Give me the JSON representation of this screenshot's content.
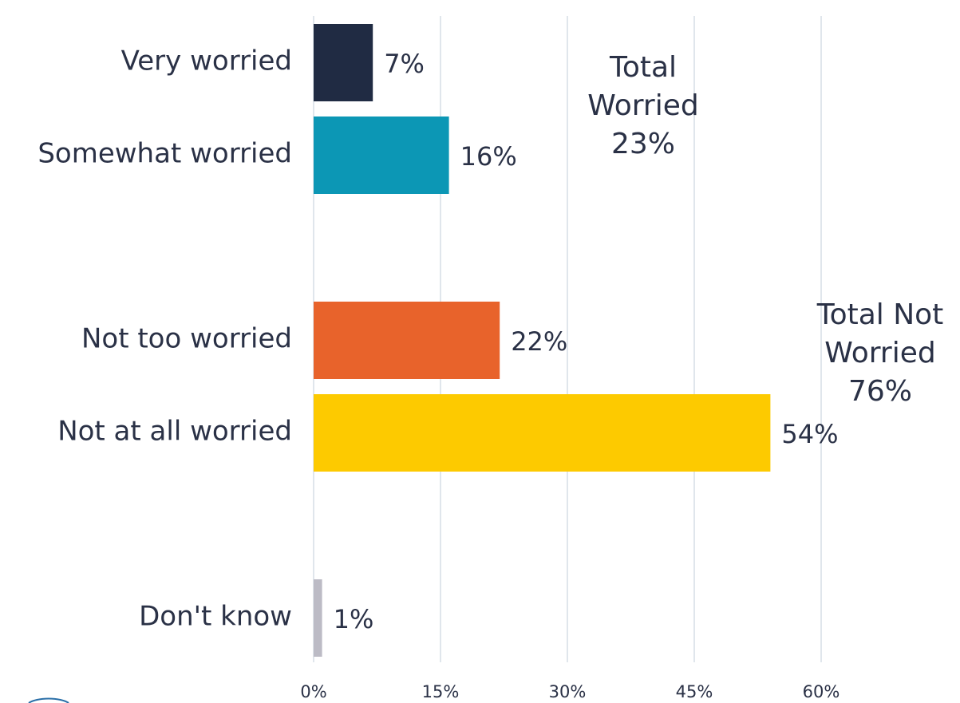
{
  "chart_data": {
    "type": "bar",
    "orientation": "horizontal",
    "categories": [
      "Very worried",
      "Somewhat worried",
      null,
      "Not too worried",
      "Not at all worried",
      null,
      "Don't know"
    ],
    "values": [
      7,
      16,
      null,
      22,
      54,
      null,
      1
    ],
    "value_labels": [
      "7%",
      "16%",
      null,
      "22%",
      "54%",
      null,
      "1%"
    ],
    "colors": [
      "#202b43",
      "#0c97b5",
      null,
      "#e8632b",
      "#fdca00",
      null,
      "#bcbbc5"
    ],
    "xlim": [
      0,
      75
    ],
    "xticks": [
      {
        "value": 0,
        "label": "0%"
      },
      {
        "value": 15,
        "label": "15%"
      },
      {
        "value": 30,
        "label": "30%"
      },
      {
        "value": 45,
        "label": "45%"
      },
      {
        "value": 60,
        "label": "60%"
      }
    ],
    "grid": true,
    "annotations": [
      {
        "lines": [
          "Total",
          "Worried",
          "23%"
        ]
      },
      {
        "lines": [
          "Total Not",
          "Worried",
          "76%"
        ]
      }
    ]
  }
}
